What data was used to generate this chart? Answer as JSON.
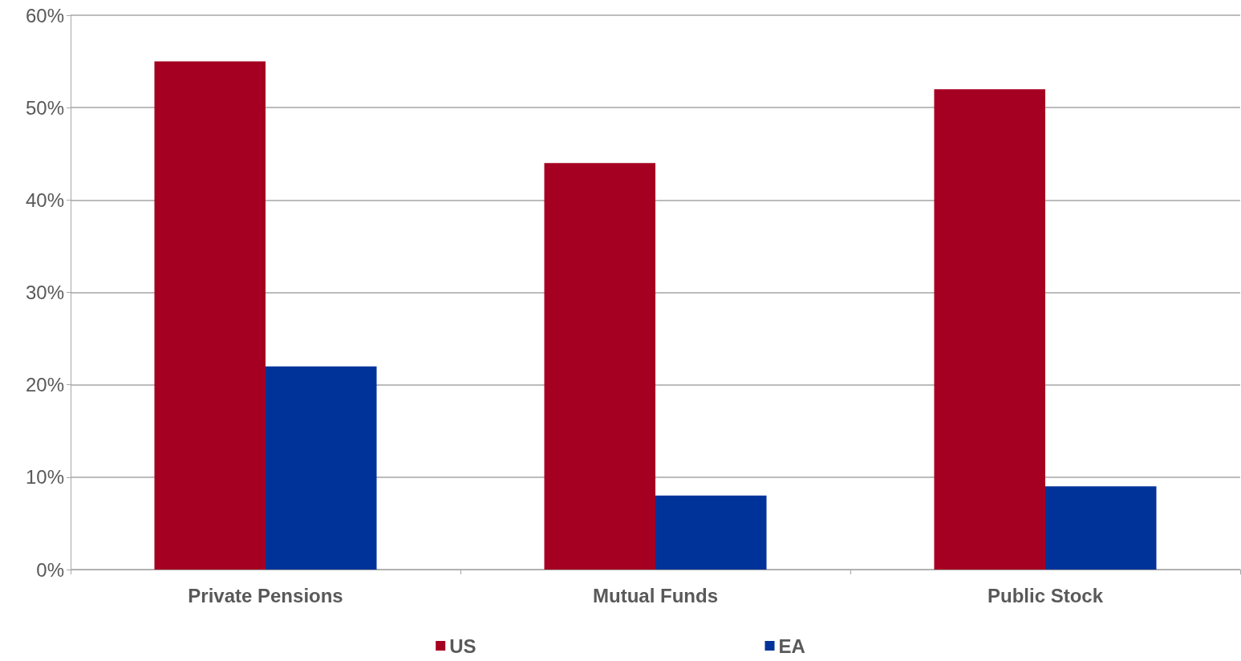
{
  "chart_data": {
    "type": "bar",
    "categories": [
      "Private Pensions",
      "Mutual Funds",
      "Public Stock"
    ],
    "series": [
      {
        "name": "US",
        "color": "#a50021",
        "values": [
          55,
          44,
          52
        ]
      },
      {
        "name": "EA",
        "color": "#003399",
        "values": [
          22,
          8,
          9
        ]
      }
    ],
    "ylim": [
      0,
      60
    ],
    "yticks": [
      {
        "value": 0,
        "label": "0%"
      },
      {
        "value": 10,
        "label": "10%"
      },
      {
        "value": 20,
        "label": "20%"
      },
      {
        "value": 30,
        "label": "30%"
      },
      {
        "value": 40,
        "label": "40%"
      },
      {
        "value": 50,
        "label": "50%"
      },
      {
        "value": 60,
        "label": "60%"
      }
    ],
    "grid": "y",
    "legend": "bottom"
  }
}
